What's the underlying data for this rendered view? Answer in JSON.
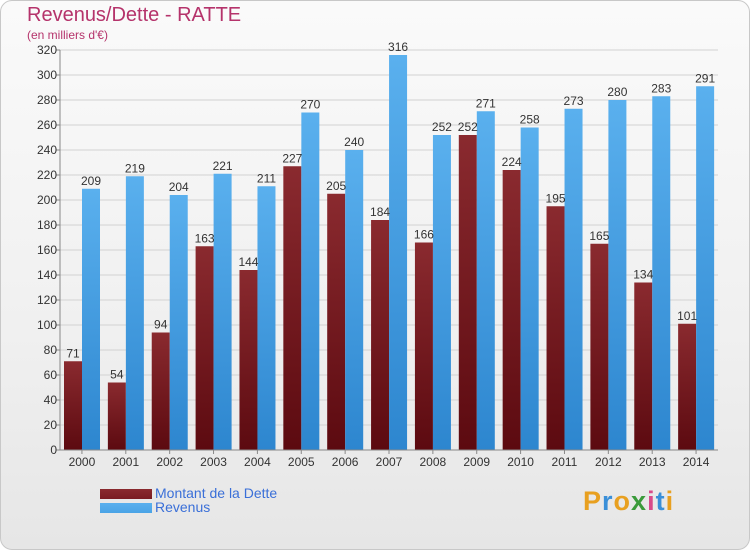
{
  "title": "Revenus/Dette - RATTE",
  "subtitle": "(en milliers d'€)",
  "colors": {
    "debt": "#7a1c22",
    "revenue": "#4aa3e6",
    "title": "#b5336b",
    "legend_text": "#3a6fd8"
  },
  "legend": [
    {
      "label": "Montant de la Dette",
      "color": "#7a1c22"
    },
    {
      "label": "Revenus",
      "color": "#4aa3e6"
    }
  ],
  "logo": "Proxiti",
  "chart_data": {
    "type": "bar",
    "categories": [
      "2000",
      "2001",
      "2002",
      "2003",
      "2004",
      "2005",
      "2006",
      "2007",
      "2008",
      "2009",
      "2010",
      "2011",
      "2012",
      "2013",
      "2014"
    ],
    "series": [
      {
        "name": "Montant de la Dette",
        "values": [
          71,
          54,
          94,
          163,
          144,
          227,
          205,
          184,
          166,
          252,
          224,
          195,
          165,
          134,
          101
        ]
      },
      {
        "name": "Revenus",
        "values": [
          209,
          219,
          204,
          221,
          211,
          270,
          240,
          316,
          252,
          271,
          258,
          273,
          280,
          283,
          291
        ]
      }
    ],
    "ylim": [
      0,
      320
    ],
    "yticks": [
      0,
      20,
      40,
      60,
      80,
      100,
      120,
      140,
      160,
      180,
      200,
      220,
      240,
      260,
      280,
      300,
      320
    ],
    "grid": true,
    "legend_position": "bottom-left"
  }
}
